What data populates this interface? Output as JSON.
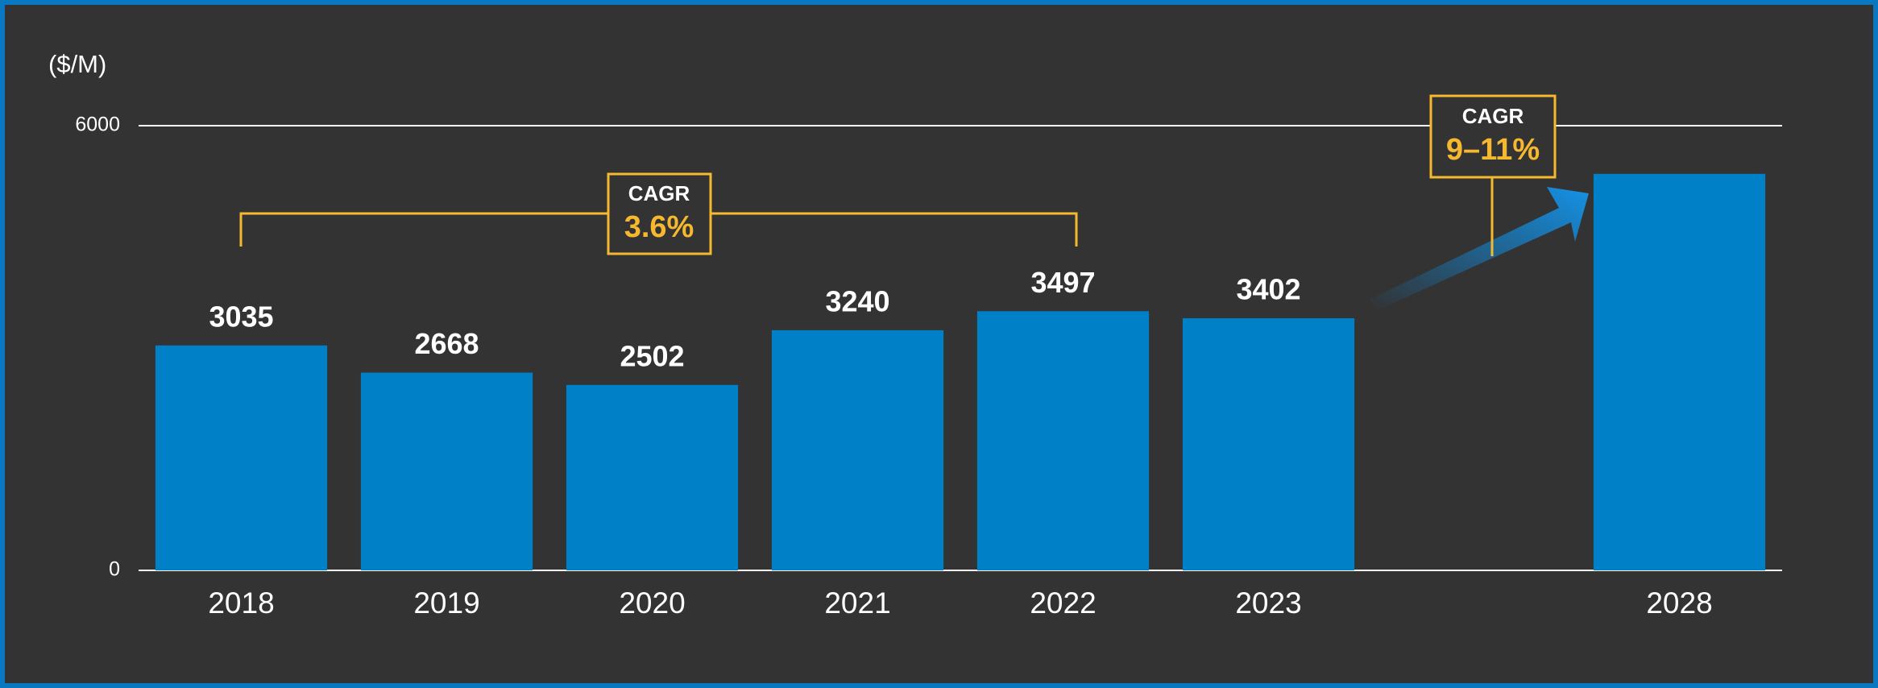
{
  "chart_data": {
    "type": "bar",
    "unit_label": "($/M)",
    "categories": [
      "2018",
      "2019",
      "2020",
      "2021",
      "2022",
      "2023",
      null,
      "2028"
    ],
    "values": [
      3035,
      2668,
      2502,
      3240,
      3497,
      3402,
      null,
      5350
    ],
    "value_labels": [
      "3035",
      "2668",
      "2502",
      "3240",
      "3497",
      "3402",
      null,
      null
    ],
    "color": "#0080c6",
    "ylim": [
      0,
      6000
    ],
    "yticks": [
      0,
      6000
    ],
    "grid": true,
    "annotations": [
      {
        "title": "CAGR",
        "text": "3.6%"
      },
      {
        "title": "CAGR",
        "text": "9–11%"
      }
    ]
  }
}
